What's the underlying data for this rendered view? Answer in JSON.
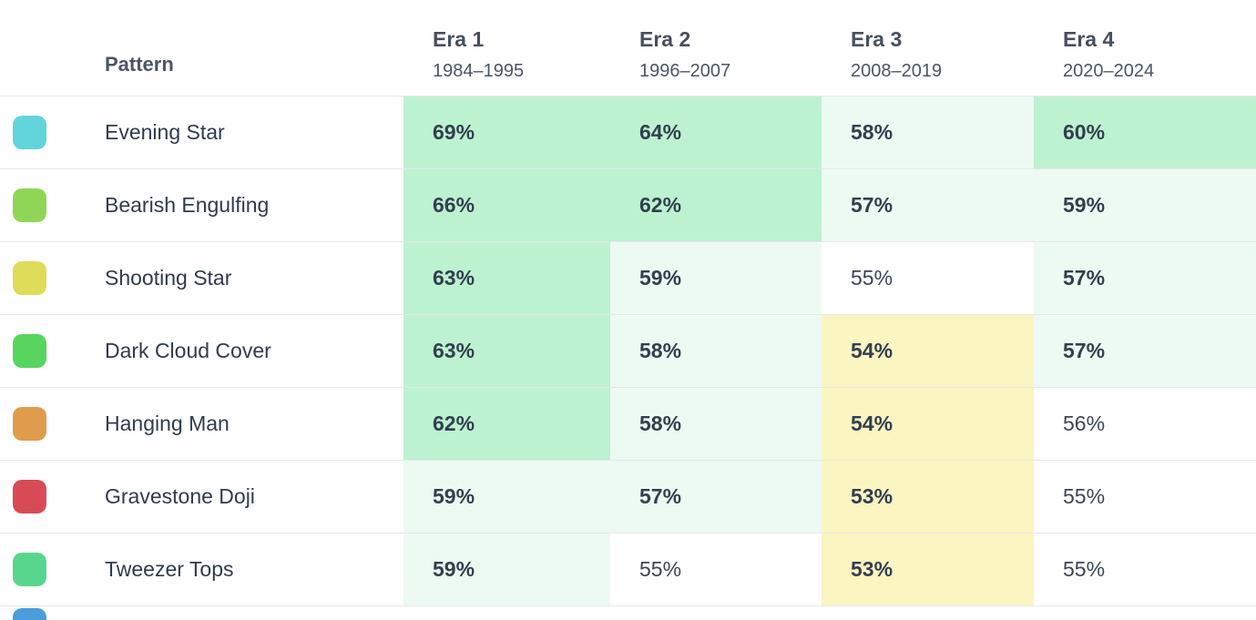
{
  "table": {
    "pattern_header": "Pattern",
    "era_headers": [
      {
        "label": "Era 1",
        "range": "1984–1995"
      },
      {
        "label": "Era 2",
        "range": "1996–2007"
      },
      {
        "label": "Era 3",
        "range": "2008–2019"
      },
      {
        "label": "Era 4",
        "range": "2020–2024"
      }
    ],
    "rows": [
      {
        "pattern": "Evening Star",
        "icon_color": "#62d5dc",
        "values": [
          "69%",
          "64%",
          "58%",
          "60%"
        ],
        "styles": [
          "strong",
          "strong",
          "soft",
          "strong"
        ]
      },
      {
        "pattern": "Bearish Engulfing",
        "icon_color": "#8fd657",
        "values": [
          "66%",
          "62%",
          "57%",
          "59%"
        ],
        "styles": [
          "strong",
          "strong",
          "soft",
          "soft"
        ]
      },
      {
        "pattern": "Shooting Star",
        "icon_color": "#dedc58",
        "values": [
          "63%",
          "59%",
          "55%",
          "57%"
        ],
        "styles": [
          "strong",
          "soft",
          "none",
          "soft"
        ]
      },
      {
        "pattern": "Dark Cloud Cover",
        "icon_color": "#58d55e",
        "values": [
          "63%",
          "58%",
          "54%",
          "57%"
        ],
        "styles": [
          "strong",
          "soft",
          "low",
          "soft"
        ]
      },
      {
        "pattern": "Hanging Man",
        "icon_color": "#df9c4d",
        "values": [
          "62%",
          "58%",
          "54%",
          "56%"
        ],
        "styles": [
          "strong",
          "soft",
          "low",
          "none"
        ]
      },
      {
        "pattern": "Gravestone Doji",
        "icon_color": "#d84b56",
        "values": [
          "59%",
          "57%",
          "53%",
          "55%"
        ],
        "styles": [
          "soft",
          "soft",
          "low",
          "none"
        ]
      },
      {
        "pattern": "Tweezer Tops",
        "icon_color": "#59d68d",
        "values": [
          "59%",
          "55%",
          "53%",
          "55%"
        ],
        "styles": [
          "soft",
          "none",
          "low",
          "none"
        ]
      }
    ],
    "next_row_icon_color": "#4a9cdb",
    "cell_colors": {
      "strong_green": "#bdf2d0",
      "pale_green": "#edfaf2",
      "pale_yellow": "#faf5c1",
      "white": "#ffffff"
    }
  },
  "chart_data": {
    "type": "table",
    "title": "",
    "columns": [
      "Pattern",
      "Era 1 1984–1995",
      "Era 2 1996–2007",
      "Era 3 2008–2019",
      "Era 4 2020–2024"
    ],
    "unit": "%",
    "rows": [
      {
        "pattern": "Evening Star",
        "values": [
          69,
          64,
          58,
          60
        ]
      },
      {
        "pattern": "Bearish Engulfing",
        "values": [
          66,
          62,
          57,
          59
        ]
      },
      {
        "pattern": "Shooting Star",
        "values": [
          63,
          59,
          55,
          57
        ]
      },
      {
        "pattern": "Dark Cloud Cover",
        "values": [
          63,
          58,
          54,
          57
        ]
      },
      {
        "pattern": "Hanging Man",
        "values": [
          62,
          58,
          54,
          56
        ]
      },
      {
        "pattern": "Gravestone Doji",
        "values": [
          59,
          57,
          53,
          55
        ]
      },
      {
        "pattern": "Tweezer Tops",
        "values": [
          59,
          55,
          53,
          55
        ]
      }
    ],
    "layout_hints": "heatmap-shaded table; green cells = higher win rate, yellow = lower, white = neutral; shaded cells bold"
  }
}
